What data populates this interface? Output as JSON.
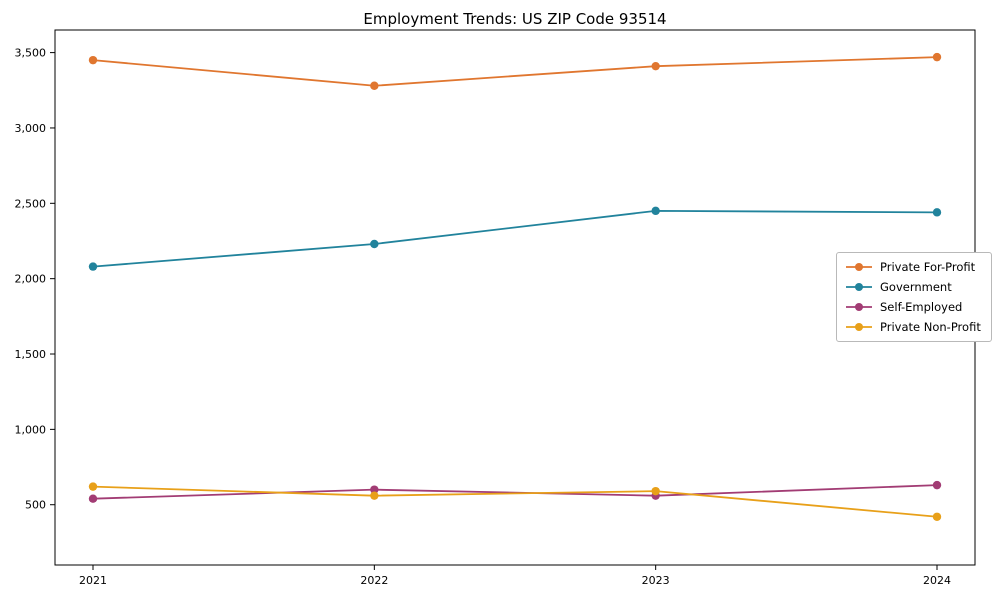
{
  "chart_data": {
    "type": "line",
    "title": "Employment Trends: US ZIP Code 93514",
    "x": [
      "2021",
      "2022",
      "2023",
      "2024"
    ],
    "series": [
      {
        "name": "Private For-Profit",
        "color": "#e0762f",
        "values": [
          3450,
          3280,
          3410,
          3470
        ]
      },
      {
        "name": "Government",
        "color": "#21839c",
        "values": [
          2080,
          2230,
          2450,
          2440
        ]
      },
      {
        "name": "Self-Employed",
        "color": "#a23c74",
        "values": [
          540,
          600,
          560,
          630
        ]
      },
      {
        "name": "Private Non-Profit",
        "color": "#e8a019",
        "values": [
          620,
          560,
          590,
          420
        ]
      }
    ],
    "xlabel": "",
    "ylabel": "",
    "yticks": [
      500,
      1000,
      1500,
      2000,
      2500,
      3000,
      3500
    ],
    "ytick_labels": [
      "500",
      "1,000",
      "1,500",
      "2,000",
      "2,500",
      "3,000",
      "3,500"
    ],
    "ylim": [
      100,
      3650
    ],
    "grid": false,
    "legend_position": "center-right"
  }
}
